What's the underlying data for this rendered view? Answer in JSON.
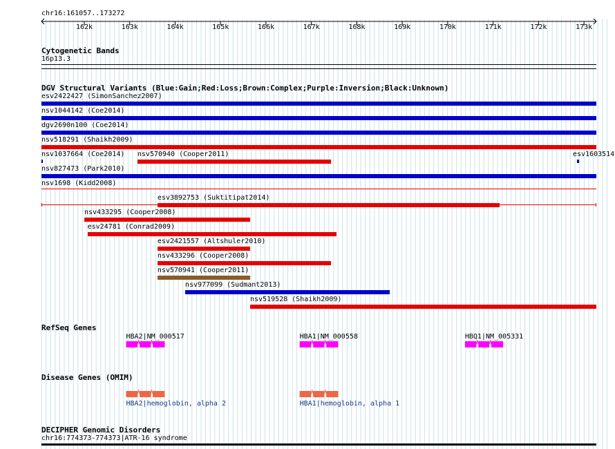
{
  "location": "chr16:161057..173272",
  "ruler": {
    "ticks": [
      {
        "label": "162k",
        "pos": 162000
      },
      {
        "label": "163k",
        "pos": 163000
      },
      {
        "label": "164k",
        "pos": 164000
      },
      {
        "label": "165k",
        "pos": 165000
      },
      {
        "label": "166k",
        "pos": 166000
      },
      {
        "label": "167k",
        "pos": 167000
      },
      {
        "label": "168k",
        "pos": 168000
      },
      {
        "label": "169k",
        "pos": 169000
      },
      {
        "label": "170k",
        "pos": 170000
      },
      {
        "label": "171k",
        "pos": 171000
      },
      {
        "label": "172k",
        "pos": 172000
      },
      {
        "label": "173k",
        "pos": 173000
      }
    ]
  },
  "tracks": {
    "cytoband": {
      "title": "Cytogenetic Bands",
      "band": "16p13.3"
    },
    "dgv": {
      "title": "DGV Structural Variants (Blue:Gain;Red:Loss;Brown:Complex;Purple:Inversion;Black:Unknown)",
      "colors": {
        "gain": "#0000cc",
        "loss": "#e80000",
        "complex": "#8b5a2b"
      },
      "features": [
        {
          "name": "esv2422427 (SimonSanchez2007)",
          "start": 161057,
          "end": 173272,
          "type": "gain"
        },
        {
          "name": "nsv1044142 (Coe2014)",
          "start": 161057,
          "end": 173272,
          "type": "gain"
        },
        {
          "name": "dgv2690n100 (Coe2014)",
          "start": 161057,
          "end": 173272,
          "type": "gain"
        },
        {
          "name": "nsv518291 (Shaikh2009)",
          "start": 161057,
          "end": 173272,
          "type": "loss"
        },
        {
          "name": "nsv1037664 (Coe2014)",
          "start": 161057,
          "end": 161070,
          "type": "gain"
        },
        {
          "name": "nsv570940 (Cooper2011)",
          "start": 163170,
          "end": 167425,
          "type": "loss"
        },
        {
          "name": "esv1603514",
          "start": 172850,
          "end": 172885,
          "type": "gain"
        },
        {
          "name": "nsv827473 (Park2010)",
          "start": 161057,
          "end": 173272,
          "type": "gain"
        },
        {
          "name": "nsv1698 (Kidd2008)",
          "start": 161057,
          "end": 173272,
          "type": "loss"
        },
        {
          "name": "esv3892753 (Suktitipat2014)",
          "start": 163610,
          "end": 171140,
          "type": "loss"
        },
        {
          "name": "nsv433295 (Cooper2008)",
          "start": 162000,
          "end": 165650,
          "type": "loss"
        },
        {
          "name": "esv24781 (Conrad2009)",
          "start": 162070,
          "end": 167550,
          "type": "loss"
        },
        {
          "name": "esv2421557 (Altshuler2010)",
          "start": 163610,
          "end": 165650,
          "type": "loss"
        },
        {
          "name": "nsv433296 (Cooper2008)",
          "start": 163610,
          "end": 167425,
          "type": "loss"
        },
        {
          "name": "nsv570941 (Cooper2011)",
          "start": 163610,
          "end": 165650,
          "type": "complex"
        },
        {
          "name": "nsv977099 (Sudmant2013)",
          "start": 164220,
          "end": 168725,
          "type": "gain"
        },
        {
          "name": "nsv519528 (Shaikh2009)",
          "start": 165650,
          "end": 173272,
          "type": "loss"
        }
      ]
    },
    "refseq": {
      "title": "RefSeq Genes",
      "color": "#ff00ff",
      "genes": [
        {
          "name": "HBA2|NM_000517",
          "start": 162920,
          "end": 163770
        },
        {
          "name": "HBA1|NM_000558",
          "start": 166740,
          "end": 167590
        },
        {
          "name": "HBQ1|NM_005331",
          "start": 170380,
          "end": 171220
        }
      ]
    },
    "omim": {
      "title": "Disease Genes (OMIM)",
      "color": "#ee6644",
      "label_color": "#1a3a8a",
      "genes": [
        {
          "name": "HBA2|hemoglobin, alpha 2",
          "start": 162920,
          "end": 163770
        },
        {
          "name": "HBA1|hemoglobin, alpha 1",
          "start": 166740,
          "end": 167590
        }
      ]
    },
    "decipher": {
      "title": "DECIPHER Genomic Disorders",
      "feature": "chr16:774373-774373|ATR-16 syndrome"
    }
  }
}
